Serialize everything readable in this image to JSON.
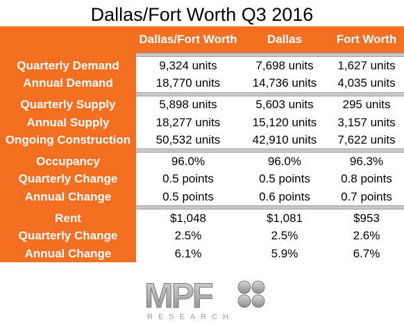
{
  "title": "Dallas/Fort Worth Q3 2016",
  "columns": [
    "Dallas/Fort Worth",
    "Dallas",
    "Fort Worth"
  ],
  "groups": [
    {
      "rows": [
        {
          "label": "Quarterly Demand",
          "values": [
            "9,324 units",
            "7,698 units",
            "1,627 units"
          ]
        },
        {
          "label": "Annual Demand",
          "values": [
            "18,770 units",
            "14,736 units",
            "4,035 units"
          ]
        }
      ]
    },
    {
      "rows": [
        {
          "label": "Quarterly Supply",
          "values": [
            "5,898 units",
            "5,603 units",
            "295 units"
          ]
        },
        {
          "label": "Annual Supply",
          "values": [
            "18,277 units",
            "15,120 units",
            "3,157 units"
          ]
        },
        {
          "label": "Ongoing Construction",
          "values": [
            "50,532 units",
            "42,910 units",
            "7,622 units"
          ]
        }
      ]
    },
    {
      "rows": [
        {
          "label": "Occupancy",
          "values": [
            "96.0%",
            "96.0%",
            "96.3%"
          ]
        },
        {
          "label": "Quarterly Change",
          "values": [
            "0.5 points",
            "0.5 points",
            "0.8 points"
          ]
        },
        {
          "label": "Annual Change",
          "values": [
            "0.5 points",
            "0.6 points",
            "0.7 points"
          ]
        }
      ]
    },
    {
      "rows": [
        {
          "label": "Rent",
          "values": [
            "$1,048",
            "$1,081",
            "$953"
          ]
        },
        {
          "label": "Quarterly Change",
          "values": [
            "2.5%",
            "2.5%",
            "2.6%"
          ]
        },
        {
          "label": "Annual Change",
          "values": [
            "6.1%",
            "5.9%",
            "6.7%"
          ]
        }
      ]
    }
  ],
  "logo": {
    "main": "MPF",
    "sub": "RESEARCH"
  },
  "colors": {
    "accent": "#f36f21",
    "separator": "#c8c8c8"
  }
}
